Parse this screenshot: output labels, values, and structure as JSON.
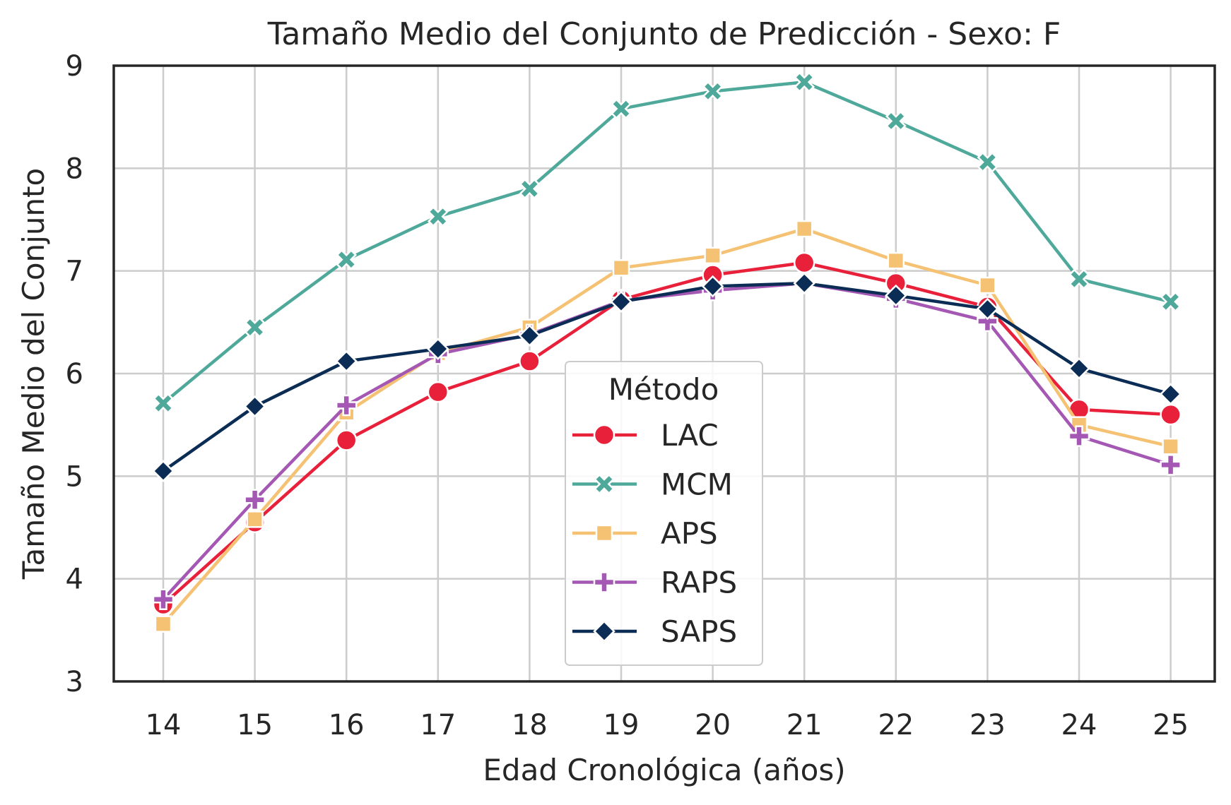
{
  "chart_data": {
    "type": "line",
    "title": "Tamaño Medio del Conjunto de Predicción - Sexo: F",
    "xlabel": "Edad Cronológica (años)",
    "ylabel": "Tamaño Medio del Conjunto",
    "x": [
      14,
      15,
      16,
      17,
      18,
      19,
      20,
      21,
      22,
      23,
      24,
      25
    ],
    "xticks": [
      "14",
      "15",
      "16",
      "17",
      "18",
      "19",
      "20",
      "21",
      "22",
      "23",
      "24",
      "25"
    ],
    "ylim": [
      3,
      9
    ],
    "yticks": [
      "3",
      "4",
      "5",
      "6",
      "7",
      "8",
      "9"
    ],
    "grid": true,
    "legend": {
      "title": "Método",
      "position": "lower center"
    },
    "series": [
      {
        "name": "LAC",
        "color": "#e8203a",
        "marker": "circle",
        "values": [
          3.75,
          4.55,
          5.35,
          5.82,
          6.12,
          6.72,
          6.96,
          7.08,
          6.88,
          6.65,
          5.65,
          5.6
        ]
      },
      {
        "name": "MCM",
        "color": "#4fa99b",
        "marker": "x",
        "values": [
          5.71,
          6.45,
          7.11,
          7.53,
          7.8,
          8.58,
          8.75,
          8.84,
          8.46,
          8.06,
          6.92,
          6.7
        ]
      },
      {
        "name": "APS",
        "color": "#f5c173",
        "marker": "square",
        "values": [
          3.56,
          4.58,
          5.62,
          6.2,
          6.45,
          7.03,
          7.15,
          7.41,
          7.1,
          6.86,
          5.5,
          5.29
        ]
      },
      {
        "name": "RAPS",
        "color": "#a458b4",
        "marker": "plus",
        "values": [
          3.8,
          4.77,
          5.69,
          6.19,
          6.38,
          6.71,
          6.81,
          6.88,
          6.73,
          6.51,
          5.39,
          5.11
        ]
      },
      {
        "name": "SAPS",
        "color": "#0b2d55",
        "marker": "diamond",
        "values": [
          5.05,
          5.68,
          6.12,
          6.24,
          6.37,
          6.7,
          6.85,
          6.88,
          6.76,
          6.63,
          6.05,
          5.8
        ]
      }
    ]
  }
}
